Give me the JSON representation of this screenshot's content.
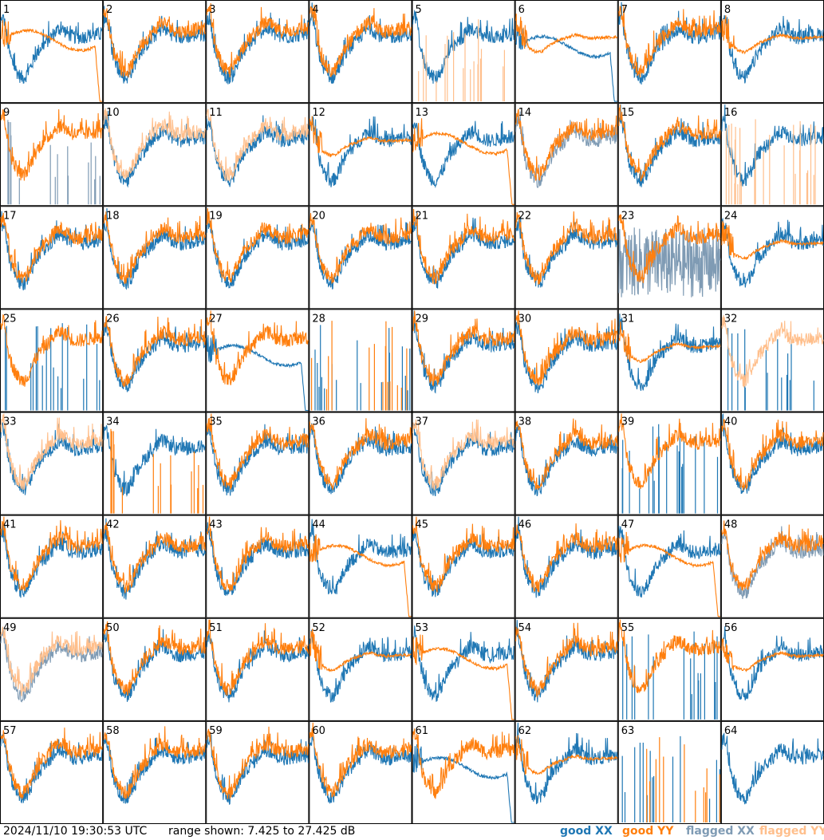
{
  "footer": {
    "timestamp": "2024/11/10 19:30:53 UTC",
    "range_text": "range shown: 7.425 to 27.425 dB",
    "legend": [
      {
        "label": "good XX",
        "color": "#1f77b4"
      },
      {
        "label": "good YY",
        "color": "#ff7f0e"
      },
      {
        "label": "flagged XX",
        "color": "#7f9bb4"
      },
      {
        "label": "flagged YY",
        "color": "#ffbf8c"
      }
    ]
  },
  "colors": {
    "good_xx": "#1f77b4",
    "good_yy": "#ff7f0e",
    "flagged_xx": "#7f9bb4",
    "flagged_yy": "#ffbf8c"
  },
  "chart_data": {
    "type": "line",
    "ylim": [
      7.425,
      27.425
    ],
    "y_unit": "dB",
    "panels": [
      {
        "label": "1",
        "xx": {
          "state": "good",
          "shape": "band"
        },
        "yy": {
          "state": "good",
          "shape": "dropout"
        }
      },
      {
        "label": "2",
        "xx": {
          "state": "good",
          "shape": "band"
        },
        "yy": {
          "state": "good",
          "shape": "band"
        }
      },
      {
        "label": "3",
        "xx": {
          "state": "good",
          "shape": "band"
        },
        "yy": {
          "state": "good",
          "shape": "band"
        }
      },
      {
        "label": "4",
        "xx": {
          "state": "good",
          "shape": "band"
        },
        "yy": {
          "state": "good",
          "shape": "band"
        }
      },
      {
        "label": "5",
        "xx": {
          "state": "good",
          "shape": "band"
        },
        "yy": {
          "state": "flagged",
          "shape": "spikes"
        }
      },
      {
        "label": "6",
        "xx": {
          "state": "good",
          "shape": "dropout"
        },
        "yy": {
          "state": "good",
          "shape": "flat"
        }
      },
      {
        "label": "7",
        "xx": {
          "state": "good",
          "shape": "band"
        },
        "yy": {
          "state": "good",
          "shape": "band"
        }
      },
      {
        "label": "8",
        "xx": {
          "state": "good",
          "shape": "band"
        },
        "yy": {
          "state": "good",
          "shape": "flat"
        }
      },
      {
        "label": "9",
        "xx": {
          "state": "flagged",
          "shape": "spikes"
        },
        "yy": {
          "state": "good",
          "shape": "band"
        }
      },
      {
        "label": "10",
        "xx": {
          "state": "good",
          "shape": "band"
        },
        "yy": {
          "state": "flagged",
          "shape": "band"
        }
      },
      {
        "label": "11",
        "xx": {
          "state": "good",
          "shape": "band"
        },
        "yy": {
          "state": "flagged",
          "shape": "band"
        }
      },
      {
        "label": "12",
        "xx": {
          "state": "good",
          "shape": "band"
        },
        "yy": {
          "state": "good",
          "shape": "flat"
        }
      },
      {
        "label": "13",
        "xx": {
          "state": "good",
          "shape": "band"
        },
        "yy": {
          "state": "good",
          "shape": "dropout"
        }
      },
      {
        "label": "14",
        "xx": {
          "state": "flagged",
          "shape": "band"
        },
        "yy": {
          "state": "good",
          "shape": "band"
        }
      },
      {
        "label": "15",
        "xx": {
          "state": "good",
          "shape": "band"
        },
        "yy": {
          "state": "good",
          "shape": "band"
        }
      },
      {
        "label": "16",
        "xx": {
          "state": "good",
          "shape": "band"
        },
        "yy": {
          "state": "flagged",
          "shape": "spikes"
        }
      },
      {
        "label": "17",
        "xx": {
          "state": "good",
          "shape": "band"
        },
        "yy": {
          "state": "good",
          "shape": "band"
        }
      },
      {
        "label": "18",
        "xx": {
          "state": "good",
          "shape": "band"
        },
        "yy": {
          "state": "good",
          "shape": "band"
        }
      },
      {
        "label": "19",
        "xx": {
          "state": "good",
          "shape": "band"
        },
        "yy": {
          "state": "good",
          "shape": "band"
        }
      },
      {
        "label": "20",
        "xx": {
          "state": "good",
          "shape": "band"
        },
        "yy": {
          "state": "good",
          "shape": "band"
        }
      },
      {
        "label": "21",
        "xx": {
          "state": "good",
          "shape": "band"
        },
        "yy": {
          "state": "good",
          "shape": "band"
        }
      },
      {
        "label": "22",
        "xx": {
          "state": "good",
          "shape": "band"
        },
        "yy": {
          "state": "good",
          "shape": "band"
        }
      },
      {
        "label": "23",
        "xx": {
          "state": "flagged",
          "shape": "noise"
        },
        "yy": {
          "state": "good",
          "shape": "band"
        }
      },
      {
        "label": "24",
        "xx": {
          "state": "good",
          "shape": "band"
        },
        "yy": {
          "state": "good",
          "shape": "flat"
        }
      },
      {
        "label": "25",
        "xx": {
          "state": "good",
          "shape": "spikes"
        },
        "yy": {
          "state": "good",
          "shape": "band"
        }
      },
      {
        "label": "26",
        "xx": {
          "state": "good",
          "shape": "band"
        },
        "yy": {
          "state": "good",
          "shape": "band"
        }
      },
      {
        "label": "27",
        "xx": {
          "state": "good",
          "shape": "dropout"
        },
        "yy": {
          "state": "good",
          "shape": "band"
        }
      },
      {
        "label": "28",
        "xx": {
          "state": "good",
          "shape": "spikes"
        },
        "yy": {
          "state": "good",
          "shape": "spikes"
        }
      },
      {
        "label": "29",
        "xx": {
          "state": "good",
          "shape": "band"
        },
        "yy": {
          "state": "good",
          "shape": "band"
        }
      },
      {
        "label": "30",
        "xx": {
          "state": "good",
          "shape": "band"
        },
        "yy": {
          "state": "good",
          "shape": "band"
        }
      },
      {
        "label": "31",
        "xx": {
          "state": "good",
          "shape": "band"
        },
        "yy": {
          "state": "good",
          "shape": "flat"
        }
      },
      {
        "label": "32",
        "xx": {
          "state": "good",
          "shape": "spikes"
        },
        "yy": {
          "state": "flagged",
          "shape": "band"
        }
      },
      {
        "label": "33",
        "xx": {
          "state": "good",
          "shape": "band"
        },
        "yy": {
          "state": "flagged",
          "shape": "band"
        }
      },
      {
        "label": "34",
        "xx": {
          "state": "good",
          "shape": "band"
        },
        "yy": {
          "state": "good",
          "shape": "spikes"
        }
      },
      {
        "label": "35",
        "xx": {
          "state": "good",
          "shape": "band"
        },
        "yy": {
          "state": "good",
          "shape": "band"
        }
      },
      {
        "label": "36",
        "xx": {
          "state": "good",
          "shape": "band"
        },
        "yy": {
          "state": "good",
          "shape": "band"
        }
      },
      {
        "label": "37",
        "xx": {
          "state": "good",
          "shape": "band"
        },
        "yy": {
          "state": "flagged",
          "shape": "band"
        }
      },
      {
        "label": "38",
        "xx": {
          "state": "good",
          "shape": "band"
        },
        "yy": {
          "state": "good",
          "shape": "band"
        }
      },
      {
        "label": "39",
        "xx": {
          "state": "good",
          "shape": "spikes"
        },
        "yy": {
          "state": "good",
          "shape": "band"
        }
      },
      {
        "label": "40",
        "xx": {
          "state": "good",
          "shape": "band"
        },
        "yy": {
          "state": "good",
          "shape": "band"
        }
      },
      {
        "label": "41",
        "xx": {
          "state": "good",
          "shape": "band"
        },
        "yy": {
          "state": "good",
          "shape": "band"
        }
      },
      {
        "label": "42",
        "xx": {
          "state": "good",
          "shape": "band"
        },
        "yy": {
          "state": "good",
          "shape": "band"
        }
      },
      {
        "label": "43",
        "xx": {
          "state": "good",
          "shape": "band"
        },
        "yy": {
          "state": "good",
          "shape": "band"
        }
      },
      {
        "label": "44",
        "xx": {
          "state": "good",
          "shape": "band"
        },
        "yy": {
          "state": "good",
          "shape": "dropout"
        }
      },
      {
        "label": "45",
        "xx": {
          "state": "good",
          "shape": "band"
        },
        "yy": {
          "state": "good",
          "shape": "band"
        }
      },
      {
        "label": "46",
        "xx": {
          "state": "good",
          "shape": "band"
        },
        "yy": {
          "state": "good",
          "shape": "band"
        }
      },
      {
        "label": "47",
        "xx": {
          "state": "good",
          "shape": "band"
        },
        "yy": {
          "state": "good",
          "shape": "dropout"
        }
      },
      {
        "label": "48",
        "xx": {
          "state": "flagged",
          "shape": "band"
        },
        "yy": {
          "state": "good",
          "shape": "band"
        }
      },
      {
        "label": "49",
        "xx": {
          "state": "flagged",
          "shape": "band"
        },
        "yy": {
          "state": "flagged",
          "shape": "band"
        }
      },
      {
        "label": "50",
        "xx": {
          "state": "good",
          "shape": "band"
        },
        "yy": {
          "state": "good",
          "shape": "band"
        }
      },
      {
        "label": "51",
        "xx": {
          "state": "good",
          "shape": "band"
        },
        "yy": {
          "state": "good",
          "shape": "band"
        }
      },
      {
        "label": "52",
        "xx": {
          "state": "good",
          "shape": "band"
        },
        "yy": {
          "state": "good",
          "shape": "flat"
        }
      },
      {
        "label": "53",
        "xx": {
          "state": "good",
          "shape": "band"
        },
        "yy": {
          "state": "good",
          "shape": "dropout"
        }
      },
      {
        "label": "54",
        "xx": {
          "state": "good",
          "shape": "band"
        },
        "yy": {
          "state": "good",
          "shape": "band"
        }
      },
      {
        "label": "55",
        "xx": {
          "state": "good",
          "shape": "spikes"
        },
        "yy": {
          "state": "good",
          "shape": "band"
        }
      },
      {
        "label": "56",
        "xx": {
          "state": "good",
          "shape": "band"
        },
        "yy": {
          "state": "good",
          "shape": "flat"
        }
      },
      {
        "label": "57",
        "xx": {
          "state": "good",
          "shape": "band"
        },
        "yy": {
          "state": "good",
          "shape": "band"
        }
      },
      {
        "label": "58",
        "xx": {
          "state": "good",
          "shape": "band"
        },
        "yy": {
          "state": "good",
          "shape": "band"
        }
      },
      {
        "label": "59",
        "xx": {
          "state": "good",
          "shape": "band"
        },
        "yy": {
          "state": "good",
          "shape": "band"
        }
      },
      {
        "label": "60",
        "xx": {
          "state": "good",
          "shape": "band"
        },
        "yy": {
          "state": "good",
          "shape": "band"
        }
      },
      {
        "label": "61",
        "xx": {
          "state": "good",
          "shape": "dropout"
        },
        "yy": {
          "state": "good",
          "shape": "band"
        }
      },
      {
        "label": "62",
        "xx": {
          "state": "good",
          "shape": "band"
        },
        "yy": {
          "state": "good",
          "shape": "flat"
        }
      },
      {
        "label": "63",
        "xx": {
          "state": "good",
          "shape": "spikes"
        },
        "yy": {
          "state": "good",
          "shape": "spikes"
        }
      },
      {
        "label": "64",
        "xx": {
          "state": "good",
          "shape": "band"
        },
        "yy": {
          "state": "good",
          "shape": "none"
        }
      }
    ]
  }
}
